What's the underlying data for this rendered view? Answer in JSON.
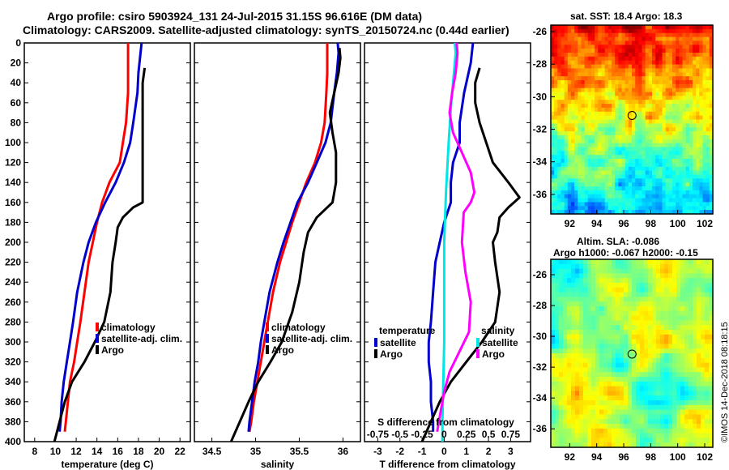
{
  "titles": {
    "line1": "Argo profile: csiro 5903924_131 24-Jul-2015 31.15S 96.616E (DM data)",
    "line2": "Climatology: CARS2009. Satellite-adjusted climatology: synTS_20150724.nc (0.44d earlier)"
  },
  "side": {
    "sst_title": "sat. SST: 18.4 Argo: 18.3",
    "sla_title1": "Altim. SLA: -0.086",
    "sla_title2": "Argo h1000: -0.067 h2000: -0.15",
    "credit": "©IMOS 14-Dec-2018 08:18:15"
  },
  "colors": {
    "clim": "#ff0000",
    "sat": "#0000cc",
    "argo": "#000000",
    "sat_s": "#00e5e5",
    "argo_s": "#ff00ff"
  },
  "chart_data": [
    {
      "type": "line",
      "name": "temperature",
      "xlabel": "temperature (deg C)",
      "ylabel": "depth",
      "xlim": [
        7,
        23
      ],
      "ylim": [
        400,
        0
      ],
      "xticks": [
        8,
        10,
        12,
        14,
        16,
        18,
        20,
        22
      ],
      "yticks": [
        0,
        20,
        40,
        60,
        80,
        100,
        120,
        140,
        160,
        180,
        200,
        220,
        240,
        260,
        280,
        300,
        320,
        340,
        360,
        380,
        400
      ],
      "legend": [
        "climatology",
        "satellite-adj. clim.",
        "Argo"
      ],
      "series": [
        {
          "name": "climatology",
          "color": "#ff0000",
          "depth": [
            0,
            10,
            30,
            50,
            80,
            100,
            120,
            140,
            160,
            180,
            200,
            220,
            250,
            280,
            300,
            320,
            340,
            360,
            380,
            390
          ],
          "values": [
            17.0,
            17.0,
            17.0,
            17.0,
            16.8,
            16.5,
            16.2,
            15.2,
            14.5,
            14.0,
            13.6,
            13.2,
            12.8,
            12.4,
            12.1,
            11.8,
            11.4,
            11.2,
            11.0,
            10.9
          ]
        },
        {
          "name": "satellite-adj. clim.",
          "color": "#0000cc",
          "depth": [
            0,
            10,
            30,
            50,
            80,
            100,
            120,
            140,
            160,
            180,
            200,
            220,
            250,
            280,
            300,
            320,
            340,
            360,
            380,
            390
          ],
          "values": [
            18.3,
            18.2,
            18.0,
            17.9,
            17.5,
            17.2,
            16.6,
            15.8,
            14.8,
            13.9,
            13.2,
            12.7,
            12.1,
            11.7,
            11.4,
            11.1,
            10.8,
            10.6,
            10.5,
            10.4
          ]
        },
        {
          "name": "Argo",
          "color": "#000000",
          "depth": [
            25,
            40,
            60,
            80,
            100,
            120,
            140,
            160,
            165,
            175,
            185,
            200,
            220,
            250,
            280,
            300,
            320,
            340,
            360,
            380,
            400
          ],
          "values": [
            18.6,
            18.4,
            18.4,
            18.4,
            18.4,
            18.4,
            18.4,
            18.4,
            17.5,
            16.5,
            16.0,
            15.8,
            15.5,
            15.3,
            14.7,
            13.8,
            12.8,
            11.6,
            10.9,
            10.4,
            9.9
          ]
        }
      ]
    },
    {
      "type": "line",
      "name": "salinity",
      "xlabel": "salinity",
      "ylabel": "depth",
      "xlim": [
        34.3,
        36.2
      ],
      "ylim": [
        400,
        0
      ],
      "xticks": [
        34.5,
        35,
        35.5,
        36
      ],
      "legend": [
        "climatology",
        "satellite-adj. clim.",
        "Argo"
      ],
      "series": [
        {
          "name": "climatology",
          "color": "#ff0000",
          "depth": [
            0,
            10,
            30,
            50,
            80,
            100,
            120,
            140,
            160,
            180,
            200,
            220,
            250,
            280,
            300,
            320,
            340,
            360,
            380,
            390
          ],
          "values": [
            35.82,
            35.82,
            35.82,
            35.81,
            35.79,
            35.75,
            35.68,
            35.58,
            35.5,
            35.42,
            35.35,
            35.28,
            35.2,
            35.14,
            35.1,
            35.06,
            35.02,
            34.98,
            34.95,
            34.93
          ]
        },
        {
          "name": "satellite-adj. clim.",
          "color": "#0000cc",
          "depth": [
            0,
            10,
            30,
            50,
            80,
            100,
            120,
            140,
            160,
            180,
            200,
            220,
            250,
            280,
            300,
            320,
            340,
            360,
            380,
            390
          ],
          "values": [
            35.94,
            35.95,
            35.93,
            35.9,
            35.86,
            35.8,
            35.7,
            35.6,
            35.48,
            35.4,
            35.32,
            35.25,
            35.16,
            35.1,
            35.06,
            35.03,
            34.99,
            34.96,
            34.93,
            34.92
          ]
        },
        {
          "name": "Argo",
          "color": "#000000",
          "depth": [
            5,
            15,
            30,
            50,
            70,
            90,
            110,
            140,
            160,
            175,
            190,
            210,
            240,
            270,
            300,
            320,
            340,
            360,
            380,
            400
          ],
          "values": [
            35.96,
            35.97,
            35.95,
            35.9,
            35.85,
            35.88,
            35.92,
            35.92,
            35.88,
            35.7,
            35.6,
            35.55,
            35.5,
            35.42,
            35.3,
            35.17,
            35.03,
            34.92,
            34.82,
            34.72
          ]
        }
      ]
    },
    {
      "type": "line",
      "name": "differences from climatology",
      "xlabel": "T difference from climatology",
      "x2label": "S difference from climatology",
      "ylabel": "depth",
      "xlim": [
        -3.6,
        3.9
      ],
      "ylim": [
        400,
        0
      ],
      "xticks": [
        -3,
        -2,
        -1,
        0,
        1,
        2,
        3
      ],
      "x2ticks": [
        "-0.75",
        "-0.5",
        "-0.25",
        "0",
        "0.25",
        "0.5",
        "0.75"
      ],
      "legend_temperature": [
        "temperature",
        "satellite",
        "Argo"
      ],
      "legend_salinity": [
        "salinity",
        "satellite",
        "Argo"
      ],
      "series": [
        {
          "name": "temperature satellite",
          "color": "#0000cc",
          "depth": [
            0,
            20,
            50,
            80,
            100,
            120,
            140,
            160,
            180,
            200,
            220,
            250,
            280,
            300,
            320,
            340,
            360,
            380,
            390
          ],
          "values": [
            1.3,
            1.2,
            0.9,
            0.7,
            0.7,
            0.4,
            0.3,
            0.3,
            0.0,
            -0.2,
            -0.4,
            -0.5,
            -0.6,
            -0.7,
            -0.7,
            -0.6,
            -0.6,
            -0.5,
            -0.5
          ]
        },
        {
          "name": "temperature Argo",
          "color": "#000000",
          "depth": [
            25,
            40,
            60,
            80,
            100,
            120,
            140,
            155,
            165,
            175,
            190,
            200,
            220,
            250,
            280,
            300,
            320,
            340,
            360,
            380,
            400
          ],
          "values": [
            1.6,
            1.4,
            1.4,
            1.6,
            1.9,
            2.2,
            2.9,
            3.4,
            2.9,
            2.5,
            2.4,
            2.2,
            2.3,
            2.5,
            2.3,
            1.7,
            1.0,
            0.3,
            -0.2,
            -0.6,
            -1.0
          ]
        },
        {
          "name": "salinity satellite",
          "color": "#00e5e5",
          "depth": [
            0,
            10,
            30,
            60,
            100,
            150,
            200,
            250,
            300,
            340,
            380,
            400
          ],
          "values": [
            0.12,
            0.13,
            0.11,
            0.08,
            0.05,
            0.02,
            0.0,
            0.0,
            0.0,
            -0.01,
            -0.02,
            -0.02
          ]
        },
        {
          "name": "salinity Argo",
          "color": "#ff00ff",
          "depth": [
            0,
            10,
            30,
            50,
            70,
            90,
            110,
            130,
            150,
            160,
            170,
            200,
            230,
            260,
            290,
            310,
            330,
            350,
            370,
            390
          ],
          "values": [
            0.14,
            0.15,
            0.13,
            0.09,
            0.06,
            0.1,
            0.2,
            0.3,
            0.34,
            0.3,
            0.22,
            0.2,
            0.24,
            0.3,
            0.28,
            0.17,
            0.06,
            0.0,
            -0.04,
            -0.08
          ]
        }
      ]
    },
    {
      "type": "heatmap",
      "name": "sat. SST map",
      "xlim": [
        90.6,
        102.6
      ],
      "ylim": [
        -37.2,
        -25.6
      ],
      "xticks": [
        92,
        94,
        96,
        98,
        100,
        102
      ],
      "yticks": [
        -26,
        -28,
        -30,
        -32,
        -34,
        -36
      ],
      "marker": {
        "lon": 96.616,
        "lat": -31.15
      }
    },
    {
      "type": "heatmap",
      "name": "Altim. SLA map",
      "xlim": [
        90.6,
        102.6
      ],
      "ylim": [
        -37.2,
        -25.0
      ],
      "xticks": [
        92,
        94,
        96,
        98,
        100,
        102
      ],
      "yticks": [
        -26,
        -28,
        -30,
        -32,
        -34,
        -36
      ],
      "marker": {
        "lon": 96.616,
        "lat": -31.15
      }
    }
  ]
}
